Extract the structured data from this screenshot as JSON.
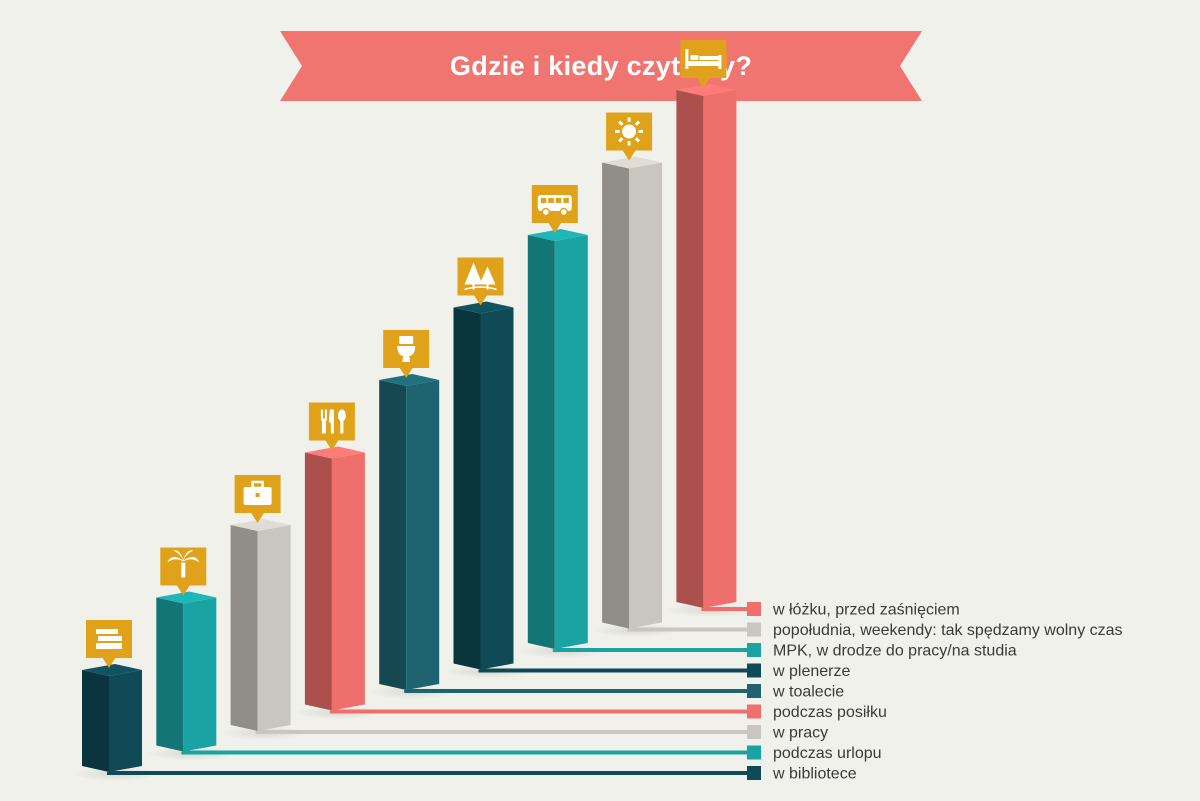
{
  "title": "Gdzie i kiedy czytamy?",
  "chart_data": {
    "type": "bar",
    "title": "Gdzie i kiedy czytamy?",
    "categories": [
      "w bibliotece",
      "podczas urlopu",
      "w pracy",
      "podczas posiłku",
      "w toalecie",
      "w plenerze",
      "MPK, w drodze do pracy/na studia",
      "popołudnia, weekendy: tak spędzamy wolny czas",
      "w łóżku, przed zaśnięciem"
    ],
    "values": [
      1,
      2,
      3,
      4,
      5,
      6,
      7,
      8,
      9
    ],
    "icons": [
      "books-icon",
      "palm-tree-icon",
      "briefcase-icon",
      "cutlery-icon",
      "toilet-icon",
      "trees-icon",
      "bus-icon",
      "sun-icon",
      "bed-icon"
    ],
    "colors": [
      "#0f4a56",
      "#1aa3a3",
      "#c9c5bf",
      "#ef6f6c",
      "#1d6470",
      "#0f4a56",
      "#1aa3a3",
      "#c9c5bf",
      "#ef6f6c"
    ],
    "icon_color": "#dfa21a",
    "banner_color": "#f07571",
    "legend_position": "bottom-right"
  }
}
